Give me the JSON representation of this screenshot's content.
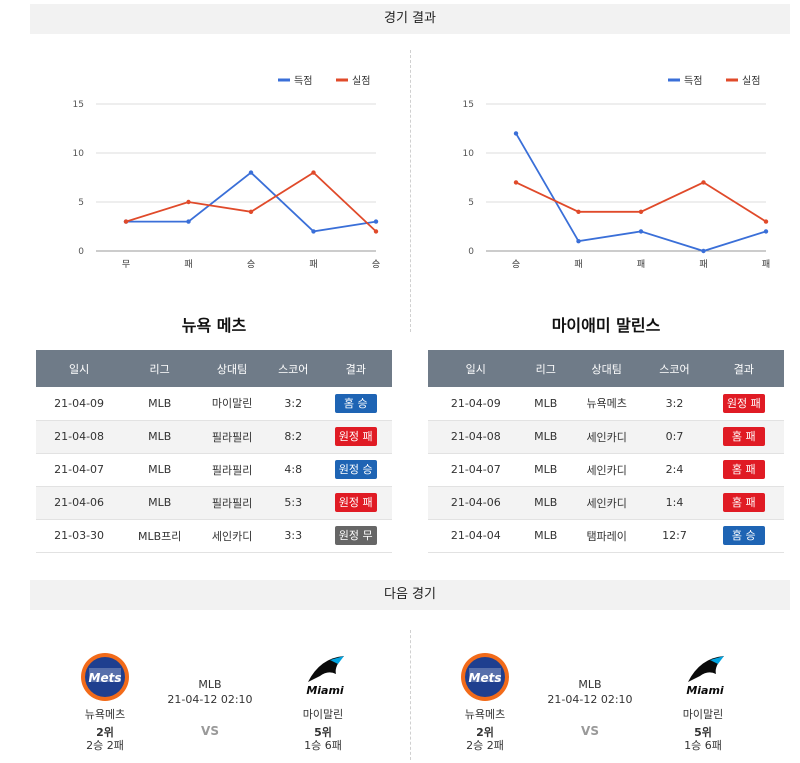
{
  "headers": {
    "results": "경기 결과",
    "next": "다음 경기"
  },
  "colors": {
    "score": "#3a6fd8",
    "loss": "#e04a2a",
    "home_win": "#1e64b4",
    "away_loss": "#e01b24",
    "away_win": "#1e64b4",
    "home_loss": "#e01b24",
    "draw": "#666666",
    "header_bg": "#6f7b88"
  },
  "legend": {
    "score": "득점",
    "loss": "실점"
  },
  "chart_data": [
    {
      "type": "line",
      "categories": [
        "무",
        "패",
        "승",
        "패",
        "승"
      ],
      "ylim": [
        0,
        15
      ],
      "yticks": [
        0,
        5,
        10,
        15
      ],
      "series": [
        {
          "name": "득점",
          "values": [
            3,
            3,
            8,
            2,
            3
          ]
        },
        {
          "name": "실점",
          "values": [
            3,
            5,
            4,
            8,
            2
          ]
        }
      ],
      "grid": true,
      "legend_position": "top-right"
    },
    {
      "type": "line",
      "categories": [
        "승",
        "패",
        "패",
        "패",
        "패"
      ],
      "ylim": [
        0,
        15
      ],
      "yticks": [
        0,
        5,
        10,
        15
      ],
      "series": [
        {
          "name": "득점",
          "values": [
            12,
            1,
            2,
            0,
            2
          ]
        },
        {
          "name": "실점",
          "values": [
            7,
            4,
            4,
            7,
            3
          ]
        }
      ],
      "grid": true,
      "legend_position": "top-right"
    }
  ],
  "teams": [
    {
      "name": "뉴욕 메츠",
      "columns": [
        "일시",
        "리그",
        "상대팀",
        "스코어",
        "결과"
      ],
      "rows": [
        {
          "date": "21-04-09",
          "league": "MLB",
          "opponent": "마이말린",
          "score": "3:2",
          "result": "홈 승",
          "kind": "home_win"
        },
        {
          "date": "21-04-08",
          "league": "MLB",
          "opponent": "필라필리",
          "score": "8:2",
          "result": "원정 패",
          "kind": "away_loss"
        },
        {
          "date": "21-04-07",
          "league": "MLB",
          "opponent": "필라필리",
          "score": "4:8",
          "result": "원정 승",
          "kind": "away_win"
        },
        {
          "date": "21-04-06",
          "league": "MLB",
          "opponent": "필라필리",
          "score": "5:3",
          "result": "원정 패",
          "kind": "away_loss"
        },
        {
          "date": "21-03-30",
          "league": "MLB프리",
          "opponent": "세인카디",
          "score": "3:3",
          "result": "원정 무",
          "kind": "draw"
        }
      ]
    },
    {
      "name": "마이애미 말린스",
      "columns": [
        "일시",
        "리그",
        "상대팀",
        "스코어",
        "결과"
      ],
      "rows": [
        {
          "date": "21-04-09",
          "league": "MLB",
          "opponent": "뉴욕메츠",
          "score": "3:2",
          "result": "원정 패",
          "kind": "away_loss"
        },
        {
          "date": "21-04-08",
          "league": "MLB",
          "opponent": "세인카디",
          "score": "0:7",
          "result": "홈 패",
          "kind": "home_loss"
        },
        {
          "date": "21-04-07",
          "league": "MLB",
          "opponent": "세인카디",
          "score": "2:4",
          "result": "홈 패",
          "kind": "home_loss"
        },
        {
          "date": "21-04-06",
          "league": "MLB",
          "opponent": "세인카디",
          "score": "1:4",
          "result": "홈 패",
          "kind": "home_loss"
        },
        {
          "date": "21-04-04",
          "league": "MLB",
          "opponent": "탬파레이",
          "score": "12:7",
          "result": "홈 승",
          "kind": "home_win"
        }
      ]
    }
  ],
  "next_games": [
    {
      "league": "MLB",
      "datetime": "21-04-12 02:10",
      "vs": "VS",
      "home": {
        "name": "뉴욕메츠",
        "rank": "2위",
        "record": "2승 2패",
        "logo": "mets-logo-icon",
        "logo_text": "Mets"
      },
      "away": {
        "name": "마이말린",
        "rank": "5위",
        "record": "1승 6패",
        "logo": "marlins-logo-icon",
        "logo_text": "Miami"
      }
    },
    {
      "league": "MLB",
      "datetime": "21-04-12 02:10",
      "vs": "VS",
      "home": {
        "name": "뉴욕메츠",
        "rank": "2위",
        "record": "2승 2패",
        "logo": "mets-logo-icon",
        "logo_text": "Mets"
      },
      "away": {
        "name": "마이말린",
        "rank": "5위",
        "record": "1승 6패",
        "logo": "marlins-logo-icon",
        "logo_text": "Miami"
      }
    }
  ]
}
